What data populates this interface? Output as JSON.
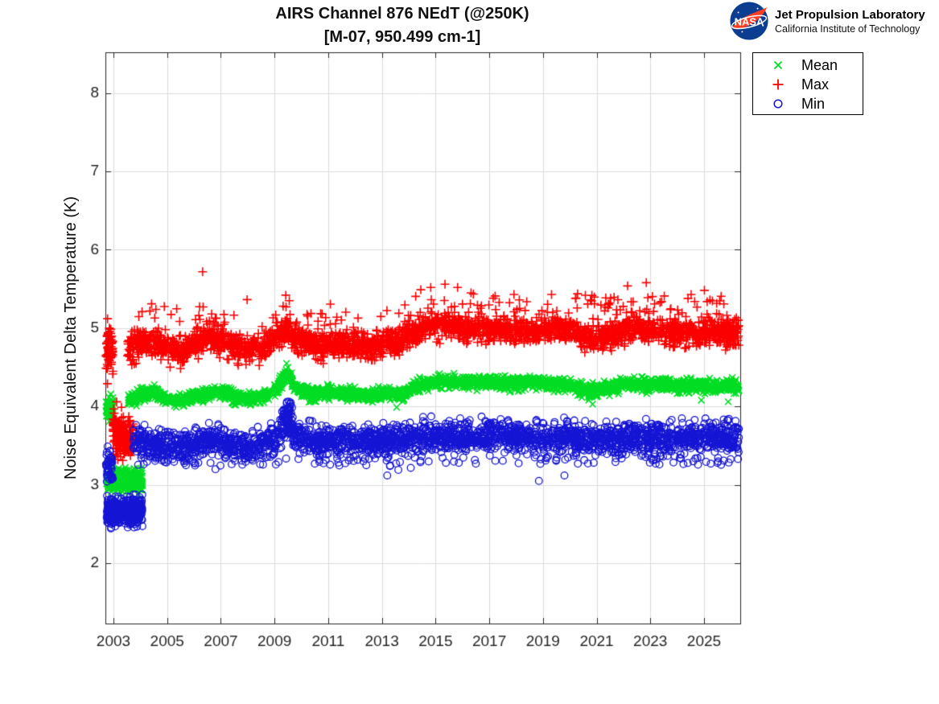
{
  "header": {
    "nasa_logo_text": "NASA",
    "org_name": "Jet Propulsion Laboratory",
    "org_sub": "California Institute of Technology"
  },
  "chart_data": {
    "type": "scatter",
    "title": "AIRS Channel 876 NEdT (@250K)",
    "subtitle": "[M-07, 950.499 cm-1]",
    "xlabel": "",
    "ylabel": "Noise Equivalent Delta Temperature (K)",
    "xlim": [
      2002.7,
      2026.35
    ],
    "ylim": [
      1.23,
      8.52
    ],
    "xticks": [
      2003,
      2005,
      2007,
      2009,
      2011,
      2013,
      2015,
      2017,
      2019,
      2021,
      2023,
      2025
    ],
    "yticks": [
      2,
      3,
      4,
      5,
      6,
      7,
      8
    ],
    "grid": true,
    "grid_color": "#dcdcdc",
    "axis_color": "#262626",
    "tick_font_px": 19,
    "legend_position": "outside-top-right",
    "seed": 20250876,
    "series": [
      {
        "name": "Mean",
        "marker": "x",
        "color": "#00dd22",
        "size": 3.9,
        "line_width": 1.6,
        "clusters": [
          {
            "t0": 2002.72,
            "t1": 2002.98,
            "n": 70,
            "center": 3.97,
            "sigma": 0.07
          },
          {
            "t0": 2002.75,
            "t1": 2004.08,
            "n": 300,
            "center": 3.05,
            "sigma": 0.07
          },
          {
            "t0": 2003.55,
            "t1": 2026.3,
            "n": 2700,
            "sigma": 0.04,
            "keypoints": [
              [
                2003.55,
                4.08
              ],
              [
                2004,
                4.13
              ],
              [
                2004.5,
                4.18
              ],
              [
                2005,
                4.1
              ],
              [
                2005.4,
                4.06
              ],
              [
                2006,
                4.12
              ],
              [
                2006.5,
                4.16
              ],
              [
                2007,
                4.19
              ],
              [
                2007.5,
                4.13
              ],
              [
                2008,
                4.09
              ],
              [
                2008.5,
                4.13
              ],
              [
                2009,
                4.19
              ],
              [
                2009.45,
                4.43
              ],
              [
                2009.8,
                4.23
              ],
              [
                2010.3,
                4.16
              ],
              [
                2011,
                4.19
              ],
              [
                2011.5,
                4.17
              ],
              [
                2012,
                4.15
              ],
              [
                2012.6,
                4.13
              ],
              [
                2013.2,
                4.17
              ],
              [
                2013.8,
                4.15
              ],
              [
                2014.3,
                4.26
              ],
              [
                2014.8,
                4.3
              ],
              [
                2015.5,
                4.32
              ],
              [
                2016.2,
                4.3
              ],
              [
                2017,
                4.32
              ],
              [
                2017.8,
                4.29
              ],
              [
                2018.5,
                4.31
              ],
              [
                2019.2,
                4.29
              ],
              [
                2020,
                4.28
              ],
              [
                2020.7,
                4.19
              ],
              [
                2021.3,
                4.23
              ],
              [
                2022,
                4.28
              ],
              [
                2022.8,
                4.27
              ],
              [
                2023.5,
                4.29
              ],
              [
                2024.2,
                4.25
              ],
              [
                2025,
                4.27
              ],
              [
                2026.3,
                4.26
              ]
            ]
          }
        ],
        "outliers": [
          [
            2009.45,
            4.55
          ],
          [
            2009.5,
            4.5
          ],
          [
            2013.55,
            3.99
          ],
          [
            2020.85,
            4.03
          ],
          [
            2024.9,
            4.08
          ],
          [
            2025.9,
            4.06
          ]
        ]
      },
      {
        "name": "Max",
        "marker": "plus",
        "color": "#fa0000",
        "size": 5.5,
        "line_width": 1.6,
        "clusters": [
          {
            "t0": 2002.72,
            "t1": 2002.98,
            "n": 75,
            "center": 4.72,
            "sigma": 0.16
          },
          {
            "t0": 2002.98,
            "t1": 2003.74,
            "n": 210,
            "sigma": 0.13,
            "keypoints": [
              [
                2002.98,
                3.74
              ],
              [
                2003.2,
                3.6
              ],
              [
                2003.45,
                3.56
              ],
              [
                2003.74,
                3.64
              ]
            ]
          },
          {
            "t0": 2003.52,
            "t1": 2026.3,
            "n": 2700,
            "sigma": 0.085,
            "keypoints": [
              [
                2003.52,
                4.74
              ],
              [
                2004,
                4.8
              ],
              [
                2004.45,
                4.83
              ],
              [
                2005,
                4.74
              ],
              [
                2005.5,
                4.7
              ],
              [
                2006,
                4.8
              ],
              [
                2006.6,
                4.88
              ],
              [
                2007.1,
                4.82
              ],
              [
                2007.6,
                4.76
              ],
              [
                2008.1,
                4.72
              ],
              [
                2008.6,
                4.76
              ],
              [
                2009,
                4.84
              ],
              [
                2009.45,
                5.02
              ],
              [
                2009.8,
                4.88
              ],
              [
                2010.3,
                4.8
              ],
              [
                2010.9,
                4.76
              ],
              [
                2011.4,
                4.8
              ],
              [
                2012,
                4.78
              ],
              [
                2012.5,
                4.73
              ],
              [
                2013,
                4.79
              ],
              [
                2013.6,
                4.83
              ],
              [
                2014.1,
                4.92
              ],
              [
                2014.6,
                5.0
              ],
              [
                2015.1,
                5.03
              ],
              [
                2015.6,
                5.05
              ],
              [
                2016.1,
                5.0
              ],
              [
                2016.6,
                4.98
              ],
              [
                2017.1,
                5.01
              ],
              [
                2017.6,
                4.96
              ],
              [
                2018.1,
                4.99
              ],
              [
                2018.6,
                4.93
              ],
              [
                2019.1,
                4.99
              ],
              [
                2019.6,
                5.0
              ],
              [
                2020.1,
                4.95
              ],
              [
                2020.7,
                4.86
              ],
              [
                2021.2,
                4.89
              ],
              [
                2021.8,
                4.95
              ],
              [
                2022.3,
                4.98
              ],
              [
                2022.8,
                4.95
              ],
              [
                2023.3,
                4.98
              ],
              [
                2023.8,
                4.93
              ],
              [
                2024.3,
                4.96
              ],
              [
                2024.8,
                4.93
              ],
              [
                2025.3,
                4.96
              ],
              [
                2026.3,
                4.94
              ]
            ]
          },
          {
            "t0": 2003.7,
            "t1": 2014.0,
            "n": 55,
            "center": 5.13,
            "sigma": 0.1
          },
          {
            "t0": 2014.0,
            "t1": 2026.3,
            "n": 85,
            "center": 5.3,
            "sigma": 0.09
          }
        ],
        "outliers": [
          [
            2002.78,
            5.12
          ],
          [
            2003.12,
            4.06
          ],
          [
            2003.3,
            3.99
          ],
          [
            2004.42,
            5.31
          ],
          [
            2004.58,
            5.24
          ],
          [
            2006.32,
            5.72
          ],
          [
            2009.32,
            5.28
          ],
          [
            2009.42,
            5.42
          ],
          [
            2009.55,
            5.35
          ],
          [
            2014.45,
            5.49
          ],
          [
            2014.82,
            5.52
          ],
          [
            2015.35,
            5.56
          ],
          [
            2015.82,
            5.52
          ],
          [
            2016.32,
            5.45
          ],
          [
            2017.22,
            5.41
          ],
          [
            2018.12,
            5.36
          ],
          [
            2019.32,
            5.43
          ],
          [
            2020.92,
            5.31
          ],
          [
            2021.52,
            5.38
          ],
          [
            2022.85,
            5.58
          ],
          [
            2023.52,
            5.41
          ],
          [
            2024.52,
            5.43
          ],
          [
            2025.22,
            5.36
          ]
        ]
      },
      {
        "name": "Min",
        "marker": "circle",
        "color": "#1414d4",
        "size": 4.3,
        "line_width": 1.3,
        "clusters": [
          {
            "t0": 2002.72,
            "t1": 2002.98,
            "n": 50,
            "center": 3.22,
            "sigma": 0.1
          },
          {
            "t0": 2002.75,
            "t1": 2004.08,
            "n": 520,
            "center": 2.66,
            "sigma": 0.08
          },
          {
            "t0": 2003.72,
            "t1": 2026.3,
            "n": 2700,
            "sigma": 0.095,
            "keypoints": [
              [
                2003.72,
                3.5
              ],
              [
                2004.2,
                3.53
              ],
              [
                2005,
                3.49
              ],
              [
                2005.6,
                3.46
              ],
              [
                2006.2,
                3.52
              ],
              [
                2007,
                3.55
              ],
              [
                2007.6,
                3.5
              ],
              [
                2008.2,
                3.49
              ],
              [
                2009,
                3.55
              ],
              [
                2009.45,
                3.78
              ],
              [
                2009.8,
                3.6
              ],
              [
                2010.5,
                3.55
              ],
              [
                2011.2,
                3.58
              ],
              [
                2012,
                3.56
              ],
              [
                2013,
                3.55
              ],
              [
                2014,
                3.6
              ],
              [
                2015,
                3.62
              ],
              [
                2016,
                3.6
              ],
              [
                2017,
                3.62
              ],
              [
                2018,
                3.6
              ],
              [
                2019,
                3.61
              ],
              [
                2020,
                3.6
              ],
              [
                2020.8,
                3.56
              ],
              [
                2021.5,
                3.58
              ],
              [
                2022.3,
                3.6
              ],
              [
                2023,
                3.58
              ],
              [
                2024,
                3.59
              ],
              [
                2025,
                3.6
              ],
              [
                2026.3,
                3.58
              ]
            ]
          },
          {
            "t0": 2009.28,
            "t1": 2009.68,
            "n": 40,
            "center": 3.93,
            "sigma": 0.07
          },
          {
            "t0": 2004.1,
            "t1": 2026.3,
            "n": 110,
            "center": 3.32,
            "sigma": 0.05
          }
        ],
        "outliers": [
          [
            2006.8,
            3.2
          ],
          [
            2010.5,
            3.27
          ],
          [
            2013.2,
            3.12
          ],
          [
            2013.3,
            3.24
          ],
          [
            2016.5,
            3.27
          ],
          [
            2018.85,
            3.05
          ],
          [
            2019.8,
            3.12
          ],
          [
            2020.3,
            3.27
          ],
          [
            2021.7,
            3.29
          ],
          [
            2023.2,
            3.27
          ],
          [
            2024.6,
            3.3
          ],
          [
            2025.5,
            3.28
          ]
        ]
      }
    ]
  }
}
